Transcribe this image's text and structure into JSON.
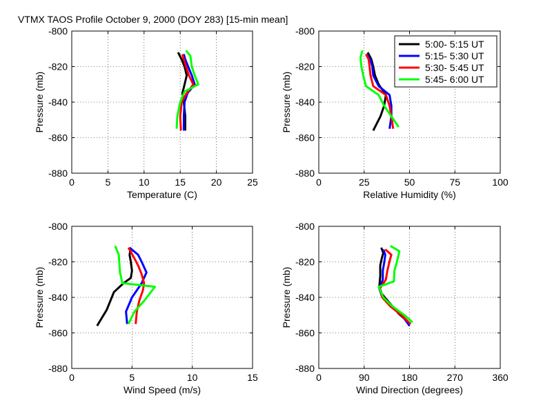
{
  "title": "VTMX TAOS Profile   October 9, 2000 (DOY 283) [15-min mean]",
  "colors": {
    "5:00-5:15": "#000000",
    "5:15-5:30": "#0000ff",
    "5:30-5:45": "#ff0000",
    "5:45-6:00": "#00ff00"
  },
  "legend": [
    "5:00- 5:15 UT",
    "5:15- 5:30 UT",
    "5:30- 5:45 UT",
    "5:45- 6:00 UT"
  ],
  "chart_data": [
    {
      "type": "line",
      "xlabel": "Temperature (C)",
      "ylabel": "Pressure (mb)",
      "xlim": [
        0,
        25
      ],
      "ylim": [
        -880,
        -800
      ],
      "xticks": [
        "0",
        "5",
        "10",
        "15",
        "20",
        "25"
      ],
      "yticks": [
        "-880",
        "-860",
        "-840",
        "-820",
        "-800"
      ],
      "grid": true,
      "series": [
        {
          "name": "5:00- 5:15 UT",
          "x": [
            14.7,
            15.2,
            15.6,
            15.9,
            15.6,
            15.3,
            15.5,
            15.7,
            15.7
          ],
          "y": [
            -812,
            -816,
            -820,
            -825,
            -830,
            -835,
            -840,
            -848,
            -856
          ]
        },
        {
          "name": "5:15- 5:30 UT",
          "x": [
            15.5,
            15.7,
            16.1,
            16.6,
            17.0,
            16.0,
            15.6,
            15.5,
            15.5
          ],
          "y": [
            -813,
            -816,
            -820,
            -825,
            -830,
            -835,
            -840,
            -848,
            -856
          ]
        },
        {
          "name": "5:30- 5:45 UT",
          "x": [
            15.3,
            15.5,
            15.8,
            16.2,
            16.8,
            15.9,
            15.2,
            15.0,
            15.1
          ],
          "y": [
            -813,
            -816,
            -820,
            -825,
            -830,
            -835,
            -840,
            -848,
            -856
          ]
        },
        {
          "name": "5:45- 6:00 UT",
          "x": [
            15.8,
            16.4,
            16.6,
            17.0,
            17.5,
            15.6,
            15.0,
            14.6,
            14.5
          ],
          "y": [
            -811,
            -814,
            -820,
            -825,
            -830,
            -834,
            -840,
            -848,
            -855
          ]
        }
      ]
    },
    {
      "type": "line",
      "xlabel": "Relative Humidity (%)",
      "ylabel": "Pressure (mb)",
      "xlim": [
        0,
        100
      ],
      "ylim": [
        -880,
        -800
      ],
      "xticks": [
        "0",
        "25",
        "50",
        "75",
        "100"
      ],
      "yticks": [
        "-880",
        "-860",
        "-840",
        "-820",
        "-800"
      ],
      "grid": true,
      "series": [
        {
          "name": "5:00- 5:15 UT",
          "x": [
            27,
            29,
            30,
            31,
            33,
            37,
            36,
            34,
            30
          ],
          "y": [
            -812,
            -816,
            -820,
            -825,
            -830,
            -836,
            -842,
            -848,
            -856
          ]
        },
        {
          "name": "5:15- 5:30 UT",
          "x": [
            26,
            28.5,
            29.5,
            30,
            33,
            39,
            40,
            40,
            39
          ],
          "y": [
            -813,
            -816,
            -820,
            -825,
            -831,
            -836,
            -842,
            -848,
            -855
          ]
        },
        {
          "name": "5:30- 5:45 UT",
          "x": [
            26,
            27.5,
            28,
            28.5,
            30,
            37,
            39,
            40,
            41
          ],
          "y": [
            -813,
            -816,
            -820,
            -825,
            -831,
            -836,
            -842,
            -848,
            -855
          ]
        },
        {
          "name": "5:45- 6:00 UT",
          "x": [
            24,
            23,
            23.5,
            24.5,
            26,
            33,
            36,
            40,
            44
          ],
          "y": [
            -811,
            -815,
            -820,
            -825,
            -831,
            -836,
            -842,
            -848,
            -854
          ]
        }
      ]
    },
    {
      "type": "line",
      "xlabel": "Wind Speed (m/s)",
      "ylabel": "Pressure (mb)",
      "xlim": [
        0,
        15
      ],
      "ylim": [
        -880,
        -800
      ],
      "xticks": [
        "0",
        "5",
        "10",
        "15"
      ],
      "yticks": [
        "-880",
        "-860",
        "-840",
        "-820",
        "-800"
      ],
      "grid": true,
      "series": [
        {
          "name": "5:00- 5:15 UT",
          "x": [
            4.9,
            4.8,
            4.9,
            5.0,
            4.9,
            4.3,
            3.5,
            2.9,
            2.1
          ],
          "y": [
            -812,
            -816,
            -820,
            -825,
            -829,
            -832,
            -837,
            -847,
            -856
          ]
        },
        {
          "name": "5:15- 5:30 UT",
          "x": [
            4.8,
            5.5,
            5.8,
            6.2,
            5.8,
            5.5,
            5.0,
            4.5,
            4.6
          ],
          "y": [
            -812,
            -816,
            -820,
            -826,
            -832,
            -835,
            -840,
            -848,
            -855
          ]
        },
        {
          "name": "5:30- 5:45 UT",
          "x": [
            4.7,
            5.2,
            5.5,
            5.8,
            6.0,
            5.9,
            5.6,
            5.4,
            5.3
          ],
          "y": [
            -812,
            -818,
            -822,
            -827,
            -832,
            -836,
            -842,
            -848,
            -855
          ]
        },
        {
          "name": "5:45- 6:00 UT",
          "x": [
            3.6,
            3.9,
            4.0,
            4.2,
            6.9,
            6.0,
            5.2,
            4.7
          ],
          "y": [
            -811,
            -816,
            -826,
            -832,
            -834,
            -842,
            -848,
            -855
          ]
        }
      ]
    },
    {
      "type": "line",
      "xlabel": "Wind Direction (degrees)",
      "ylabel": "Pressure (mb)",
      "xlim": [
        0,
        360
      ],
      "ylim": [
        -880,
        -800
      ],
      "xticks": [
        "0",
        "90",
        "180",
        "270",
        "360"
      ],
      "yticks": [
        "-880",
        "-860",
        "-840",
        "-820",
        "-800"
      ],
      "grid": true,
      "series": [
        {
          "name": "5:00- 5:15 UT",
          "x": [
            124,
            128,
            125,
            122,
            122,
            120,
            125,
            140,
            158,
            182
          ],
          "y": [
            -812,
            -815,
            -818,
            -822,
            -828,
            -834,
            -838,
            -843,
            -849,
            -855
          ]
        },
        {
          "name": "5:15- 5:30 UT",
          "x": [
            128,
            132,
            130,
            127,
            127,
            120,
            126,
            145,
            165,
            180
          ],
          "y": [
            -813,
            -816,
            -820,
            -825,
            -830,
            -835,
            -840,
            -845,
            -850,
            -856
          ]
        },
        {
          "name": "5:30- 5:45 UT",
          "x": [
            132,
            144,
            140,
            136,
            133,
            121,
            126,
            142,
            164,
            182
          ],
          "y": [
            -813,
            -816,
            -820,
            -825,
            -830,
            -835,
            -840,
            -845,
            -850,
            -855
          ]
        },
        {
          "name": "5:45- 6:00 UT",
          "x": [
            142,
            160,
            155,
            150,
            149,
            119,
            128,
            146,
            170,
            186
          ],
          "y": [
            -811,
            -814,
            -820,
            -825,
            -831,
            -834,
            -840,
            -845,
            -850,
            -854
          ]
        }
      ]
    }
  ]
}
